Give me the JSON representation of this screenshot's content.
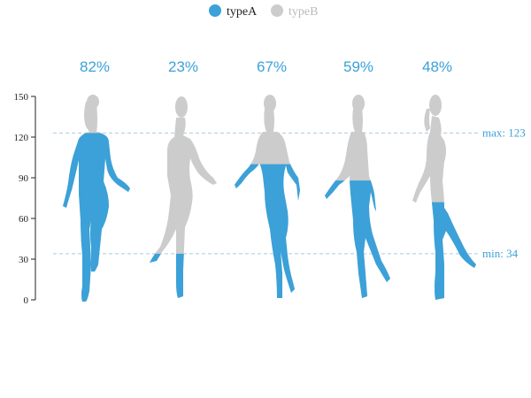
{
  "chart_data": {
    "type": "bar",
    "title": "",
    "xlabel": "",
    "ylabel": "",
    "ylim": [
      0,
      150
    ],
    "yticks": [
      0,
      30,
      60,
      90,
      120,
      150
    ],
    "categories": [
      "",
      "",
      "",
      "",
      ""
    ],
    "series": [
      {
        "name": "typeA",
        "values": [
          123,
          34,
          100,
          88,
          72
        ]
      },
      {
        "name": "typeB",
        "values": [
          150,
          150,
          150,
          150,
          150
        ]
      }
    ],
    "percent_labels": [
      "82%",
      "23%",
      "67%",
      "59%",
      "48%"
    ],
    "mark_lines": [
      {
        "label": "max: 123",
        "value": 123
      },
      {
        "label": "min: 34",
        "value": 34
      }
    ],
    "legend": {
      "placement": "top-center",
      "items": [
        "typeA",
        "typeB"
      ]
    },
    "grid": false
  },
  "colors": {
    "typeA": "#3ba1d8",
    "typeB": "#cccccc",
    "legend_inactive_text": "#bbbbbb",
    "legend_active_text": "#222222",
    "markline": "#a9cbe0",
    "markline_text": "#3ba1d8"
  }
}
